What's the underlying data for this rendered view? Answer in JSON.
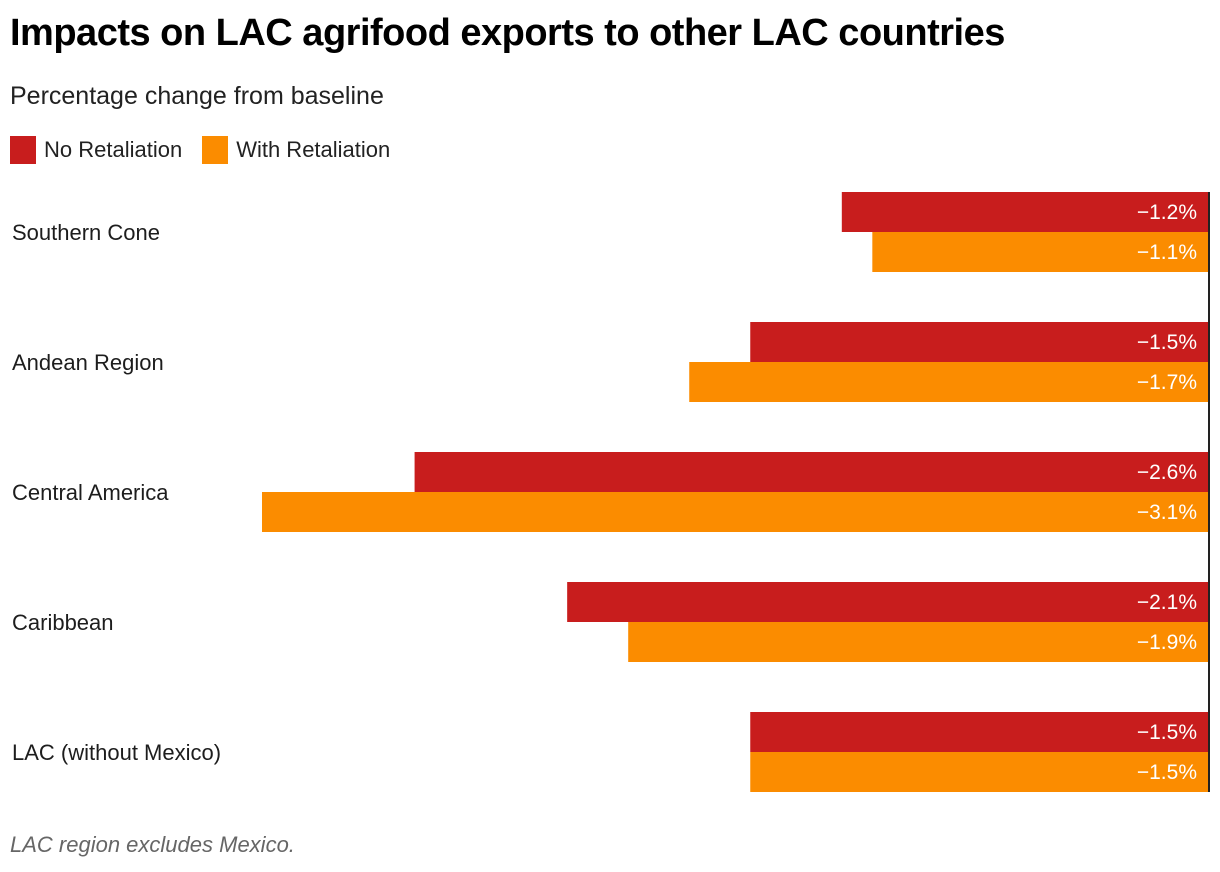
{
  "chart_data": {
    "type": "bar",
    "orientation": "horizontal",
    "title": "Impacts on LAC agrifood exports to other LAC countries",
    "subtitle": "Percentage change from baseline",
    "categories": [
      "Southern Cone",
      "Andean Region",
      "Central America",
      "Caribbean",
      "LAC (without Mexico)"
    ],
    "series": [
      {
        "name": "No Retaliation",
        "color": "#c81d1d",
        "values": [
          -1.2,
          -1.5,
          -2.6,
          -2.1,
          -1.5
        ],
        "labels": [
          "−1.2%",
          "−1.5%",
          "−2.6%",
          "−2.1%",
          "−1.5%"
        ]
      },
      {
        "name": "With Retaliation",
        "color": "#fb8c00",
        "values": [
          -1.1,
          -1.7,
          -3.1,
          -1.9,
          -1.5
        ],
        "labels": [
          "−1.1%",
          "−1.7%",
          "−3.1%",
          "−1.9%",
          "−1.5%"
        ]
      }
    ],
    "xlim": [
      -3.1,
      0
    ],
    "xlabel": "",
    "ylabel": "",
    "grid": false,
    "legend_position": "top-left",
    "note": "LAC region excludes Mexico."
  }
}
